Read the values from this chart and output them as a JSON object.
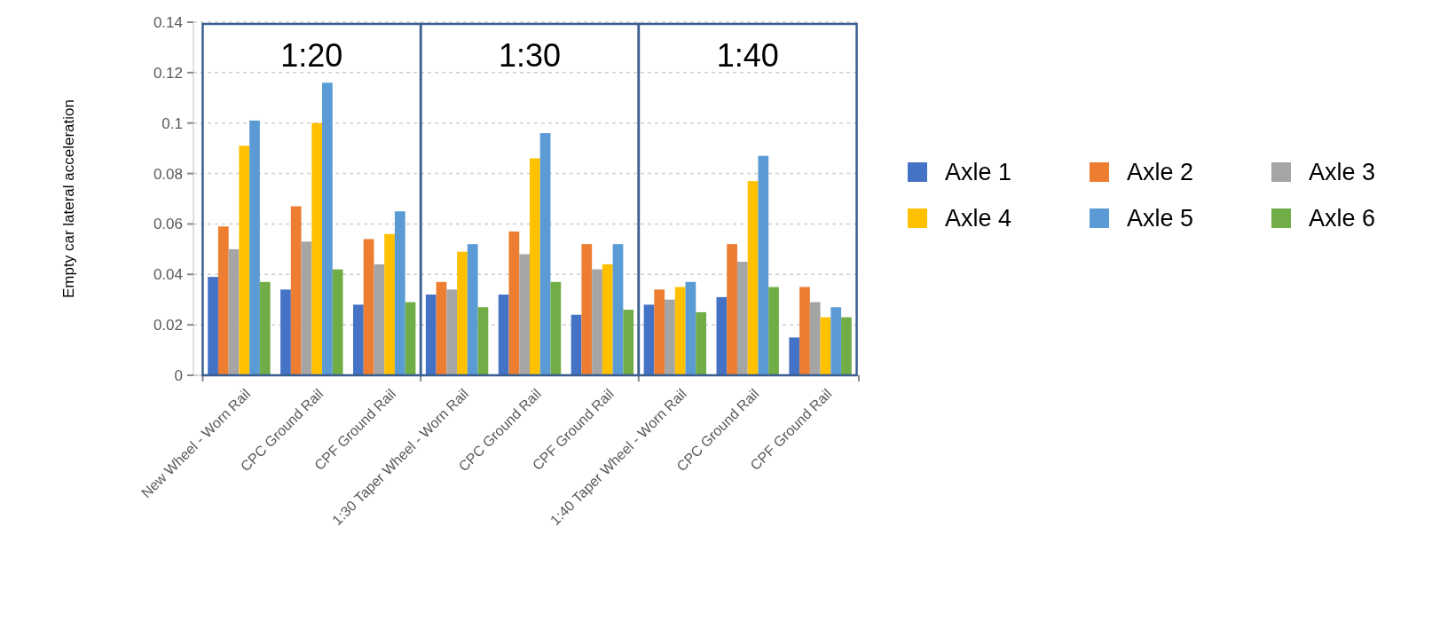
{
  "chart_data": {
    "type": "bar",
    "ylabel": "Empty car lateral acceleration",
    "categories": [
      "New Wheel - Worn Rail",
      "CPC Ground Rail",
      "CPF Ground Rail",
      "1:30 Taper Wheel - Worn Rail",
      "CPC Ground Rail",
      "CPF Ground Rail",
      "1:40 Taper Wheel - Worn Rail",
      "CPC Ground Rail",
      "CPF Ground Rail"
    ],
    "series": [
      {
        "name": "Axle 1",
        "color": "#4472c4",
        "values": [
          0.039,
          0.034,
          0.028,
          0.032,
          0.032,
          0.024,
          0.028,
          0.031,
          0.015
        ]
      },
      {
        "name": "Axle 2",
        "color": "#ed7d31",
        "values": [
          0.059,
          0.067,
          0.054,
          0.037,
          0.057,
          0.052,
          0.034,
          0.052,
          0.035
        ]
      },
      {
        "name": "Axle 3",
        "color": "#a5a5a5",
        "values": [
          0.05,
          0.053,
          0.044,
          0.034,
          0.048,
          0.042,
          0.03,
          0.045,
          0.029
        ]
      },
      {
        "name": "Axle 4",
        "color": "#ffc000",
        "values": [
          0.091,
          0.1,
          0.056,
          0.049,
          0.086,
          0.044,
          0.035,
          0.077,
          0.023
        ]
      },
      {
        "name": "Axle 5",
        "color": "#5b9bd5",
        "values": [
          0.101,
          0.116,
          0.065,
          0.052,
          0.096,
          0.052,
          0.037,
          0.087,
          0.027
        ]
      },
      {
        "name": "Axle 6",
        "color": "#70ad47",
        "values": [
          0.037,
          0.042,
          0.029,
          0.027,
          0.037,
          0.026,
          0.025,
          0.035,
          0.023
        ]
      }
    ],
    "ylim": [
      0,
      0.14
    ],
    "yticks": [
      0,
      0.02,
      0.04,
      0.06,
      0.08,
      0.1,
      0.12,
      0.14
    ],
    "grid": "y",
    "legend": "right",
    "annotations": [
      "1:20",
      "1:30",
      "1:40"
    ]
  }
}
